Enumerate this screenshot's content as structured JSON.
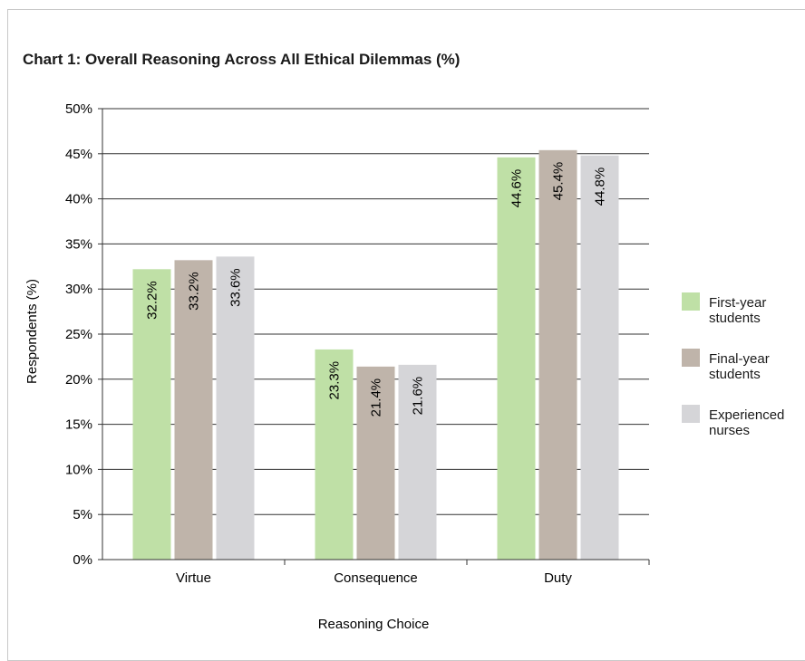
{
  "chart_data": {
    "type": "bar",
    "title": "Chart 1: Overall Reasoning Across All Ethical Dilemmas (%)",
    "xlabel": "Reasoning Choice",
    "ylabel": "Respondents (%)",
    "ylim": [
      0,
      50
    ],
    "yticks": [
      "0%",
      "5%",
      "10%",
      "15%",
      "20%",
      "25%",
      "30%",
      "35%",
      "40%",
      "45%",
      "50%"
    ],
    "grid": true,
    "legend_position": "right",
    "categories": [
      "Virtue",
      "Consequence",
      "Duty"
    ],
    "series": [
      {
        "name": "First-year students",
        "color": "#bfe0a6",
        "values": [
          32.2,
          23.3,
          44.6
        ],
        "labels": [
          "32.2%",
          "23.3%",
          "44.6%"
        ]
      },
      {
        "name": "Final-year students",
        "color": "#bfb4aa",
        "values": [
          33.2,
          21.4,
          45.4
        ],
        "labels": [
          "33.2%",
          "21.4%",
          "45.4%"
        ]
      },
      {
        "name": "Experienced nurses",
        "color": "#d5d5d8",
        "values": [
          33.6,
          21.6,
          44.8
        ],
        "labels": [
          "33.6%",
          "21.6%",
          "44.8%"
        ]
      }
    ]
  },
  "legend": {
    "items": [
      {
        "line1": "First-year",
        "line2": "students"
      },
      {
        "line1": "Final-year",
        "line2": "students"
      },
      {
        "line1": "Experienced",
        "line2": "nurses"
      }
    ]
  }
}
